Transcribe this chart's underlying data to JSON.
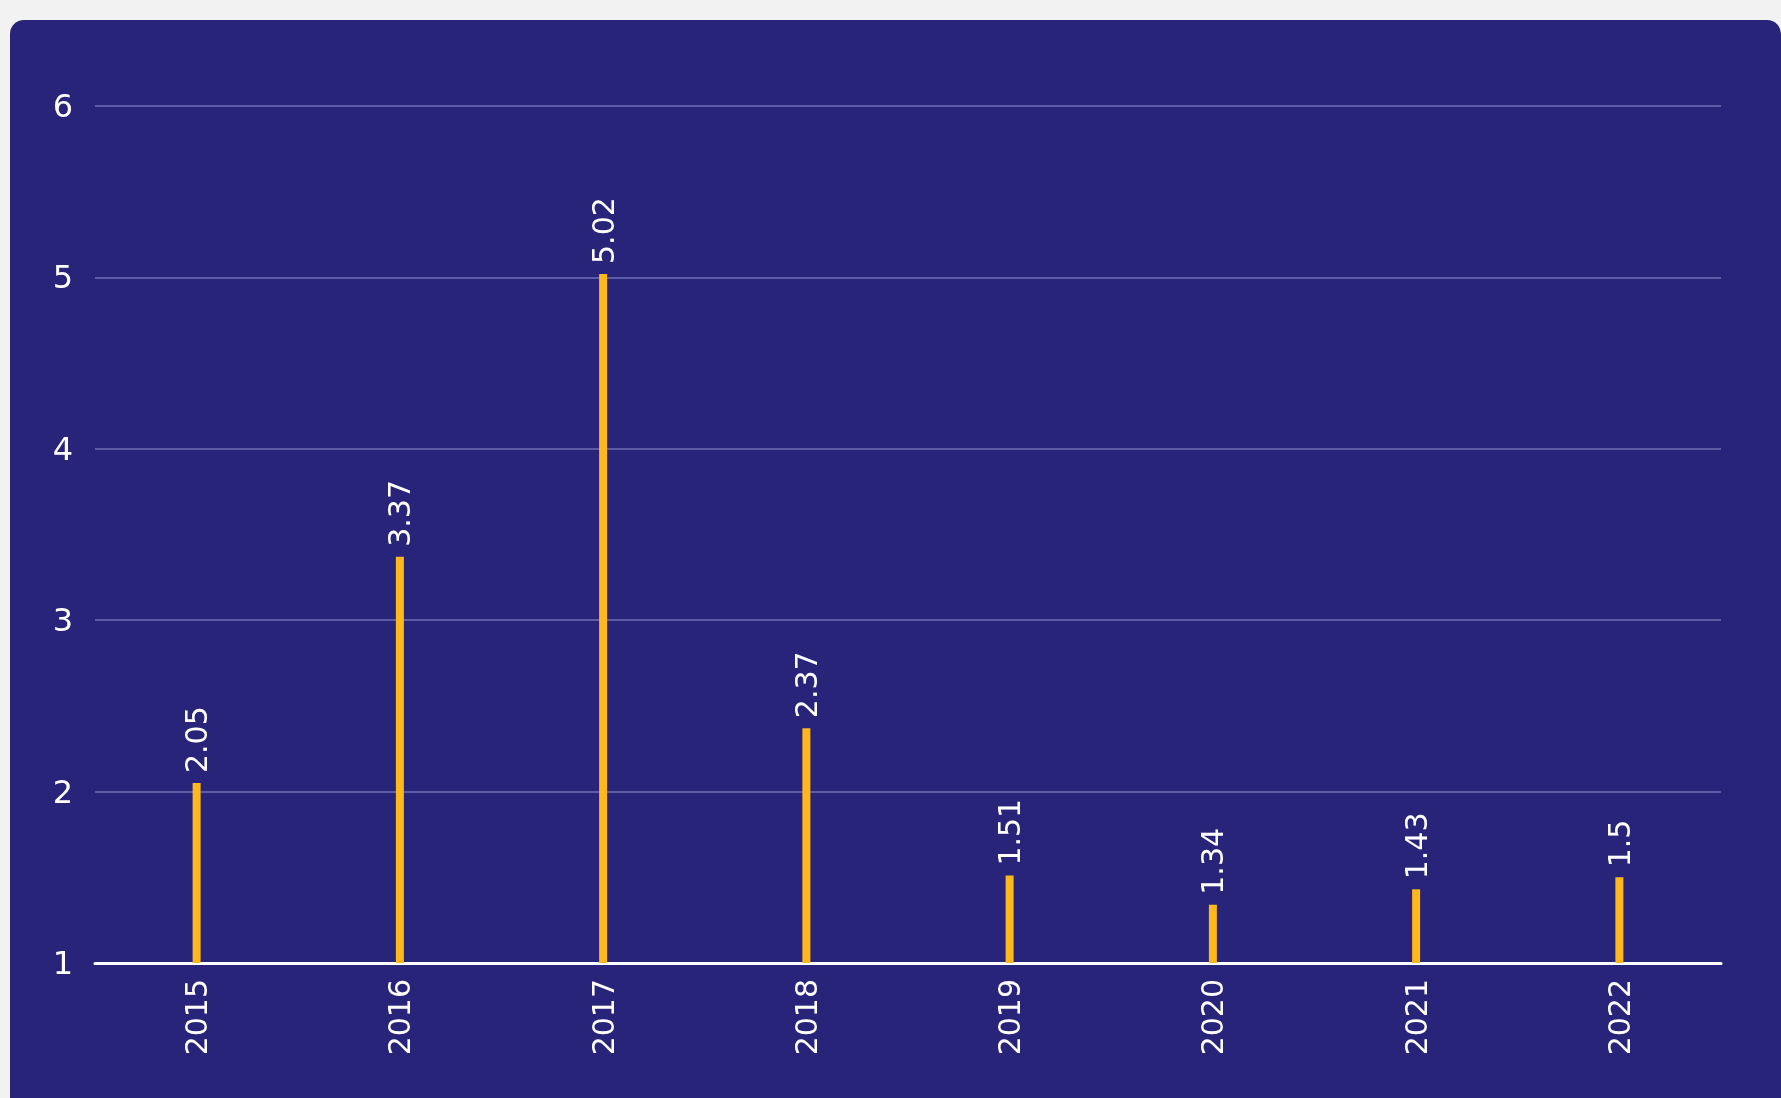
{
  "chart_data": {
    "type": "bar",
    "categories": [
      "2015",
      "2016",
      "2017",
      "2018",
      "2019",
      "2020",
      "2021",
      "2022"
    ],
    "values": [
      2.05,
      3.37,
      5.02,
      2.37,
      1.51,
      1.34,
      1.43,
      1.5
    ],
    "color": "#ffb81c",
    "ylim": [
      1,
      6
    ],
    "yticks": [
      1,
      2,
      3,
      4,
      5,
      6
    ],
    "grid": "y",
    "data_labels": true
  }
}
